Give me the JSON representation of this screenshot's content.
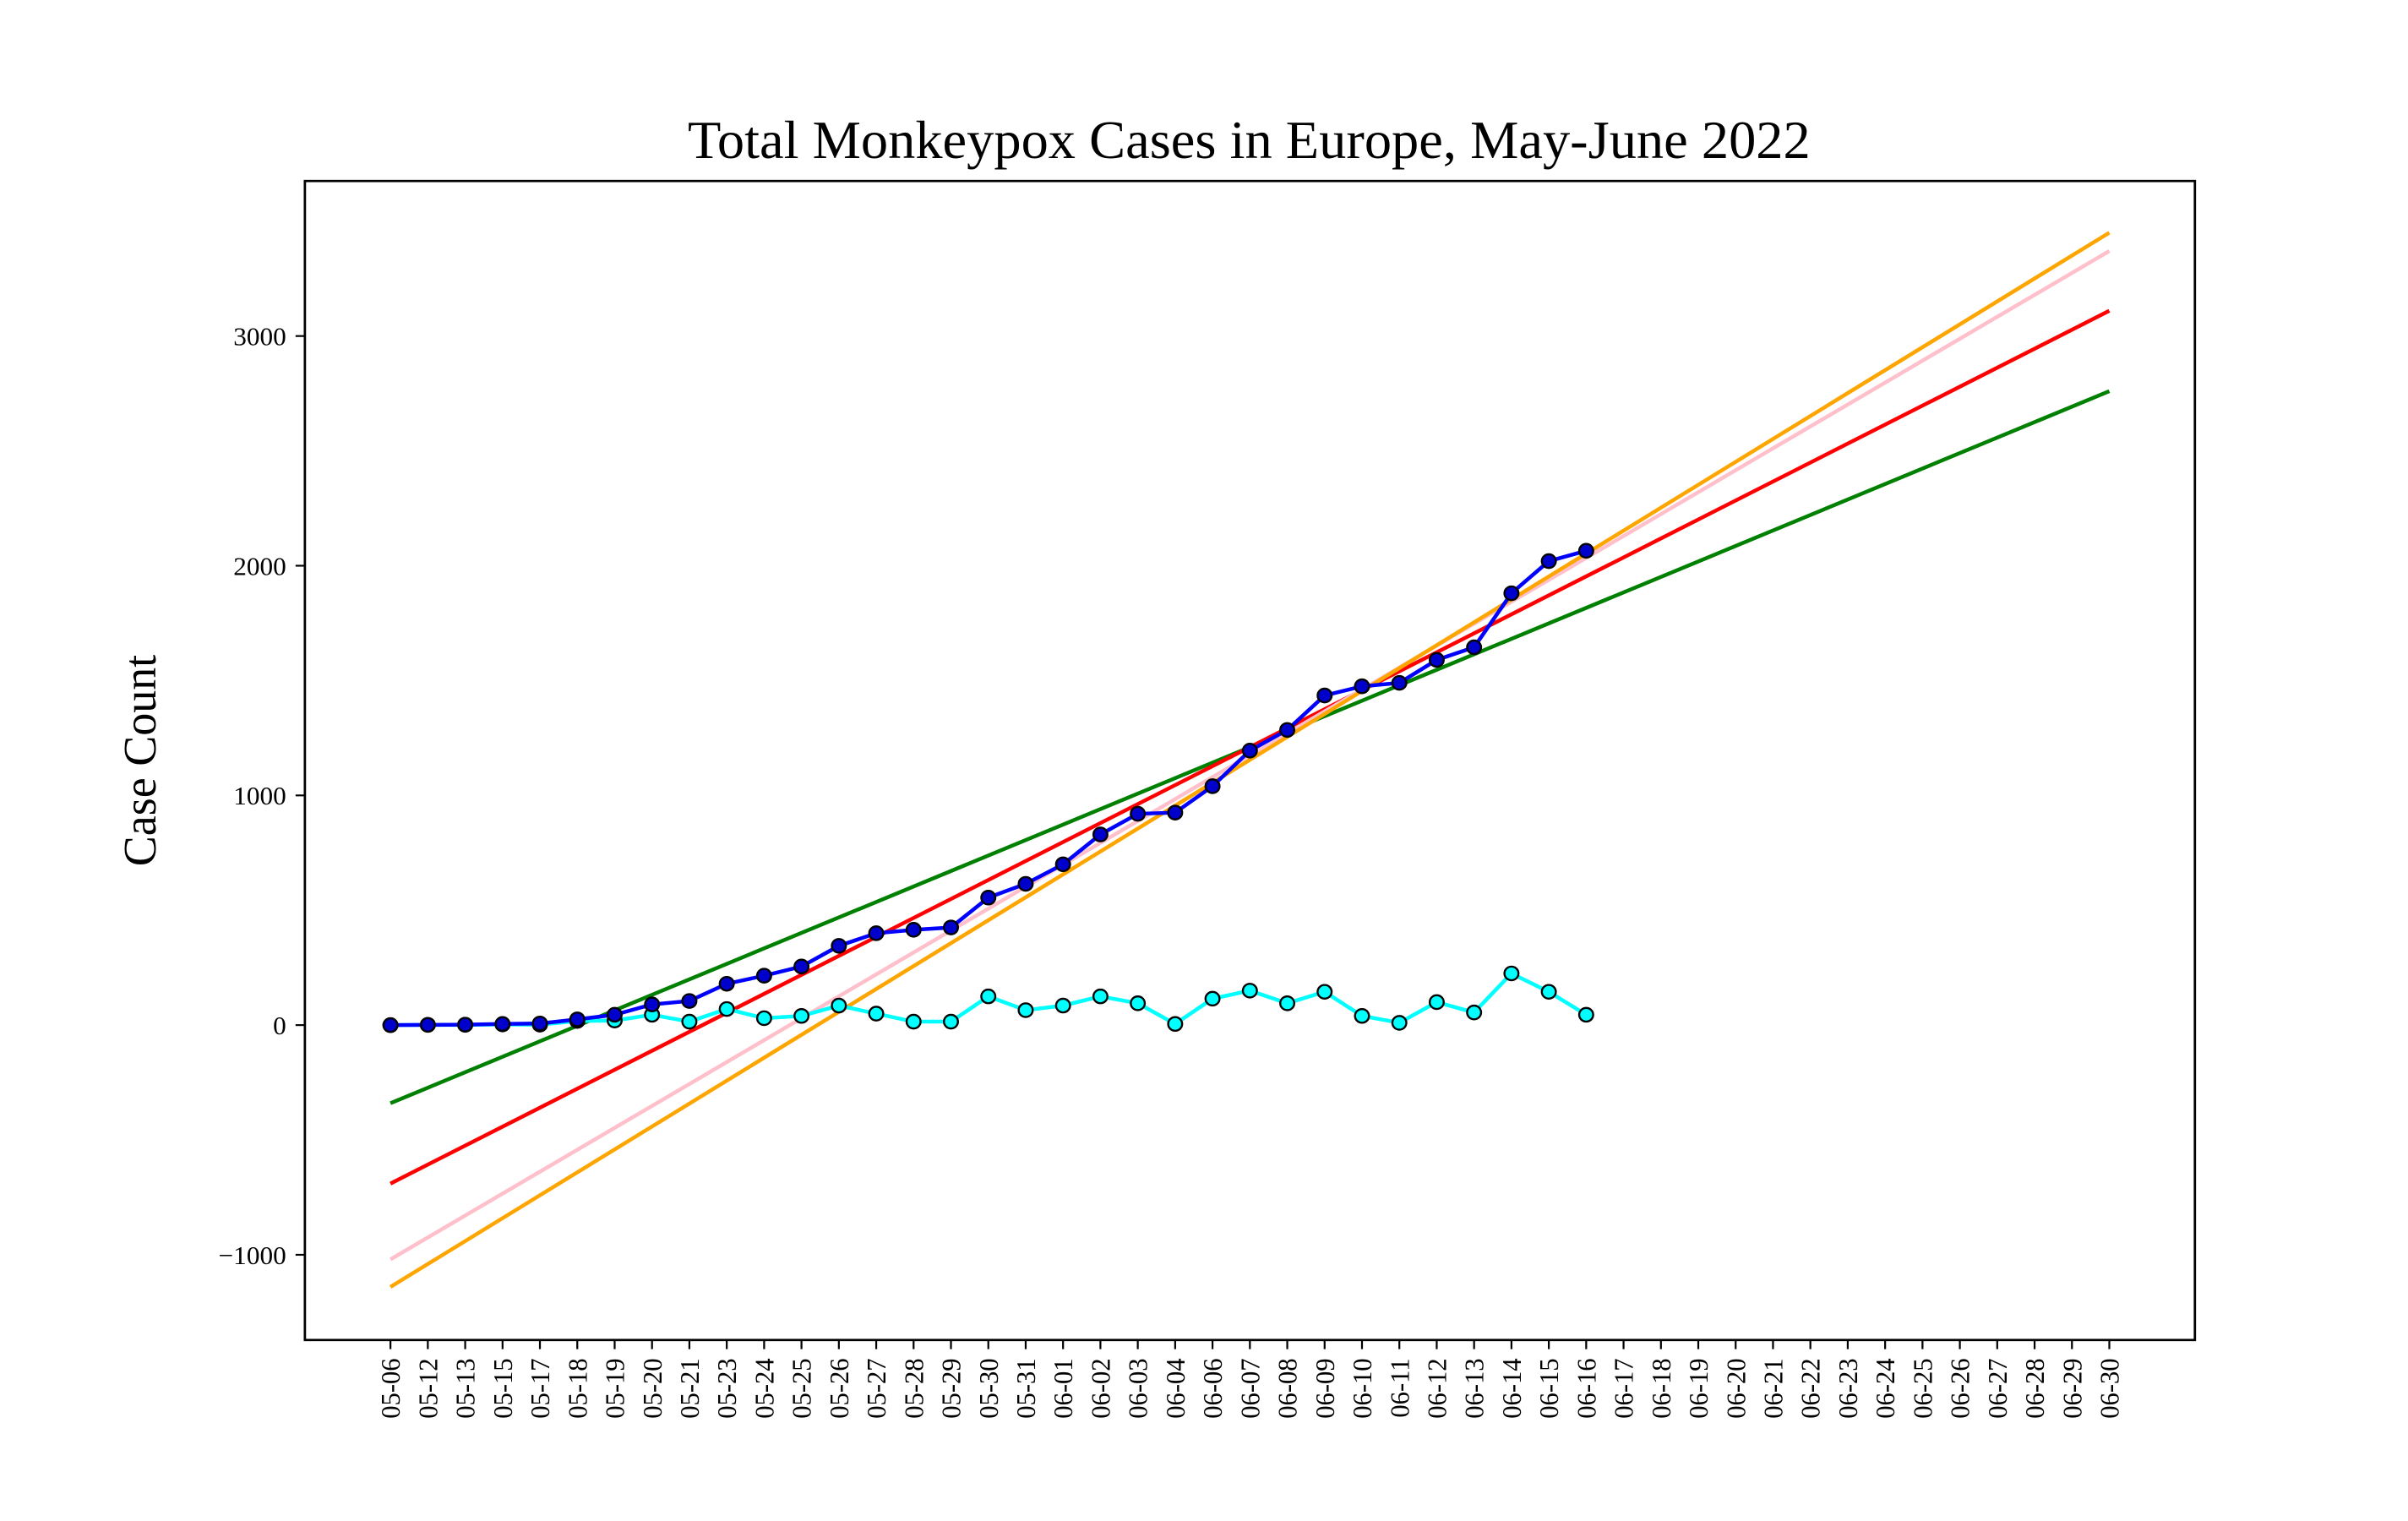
{
  "chart_data": {
    "type": "line",
    "title": "Total Monkeypox Cases in Europe, May-June 2022",
    "y_label": "Case Count",
    "categories": [
      "05-06",
      "05-12",
      "05-13",
      "05-15",
      "05-17",
      "05-18",
      "05-19",
      "05-20",
      "05-21",
      "05-23",
      "05-24",
      "05-25",
      "05-26",
      "05-27",
      "05-28",
      "05-29",
      "05-30",
      "05-31",
      "06-01",
      "06-02",
      "06-03",
      "06-04",
      "06-06",
      "06-07",
      "06-08",
      "06-09",
      "06-10",
      "06-11",
      "06-12",
      "06-13",
      "06-14",
      "06-15",
      "06-16",
      "06-17",
      "06-18",
      "06-19",
      "06-20",
      "06-21",
      "06-22",
      "06-23",
      "06-24",
      "06-25",
      "06-26",
      "06-27",
      "06-28",
      "06-29",
      "06-30"
    ],
    "series": [
      {
        "color": "#008000",
        "x": [
          "05-06",
          "06-30"
        ],
        "values": [
          -340,
          2760
        ]
      },
      {
        "color": "#ff0000",
        "x": [
          "05-06",
          "06-30"
        ],
        "values": [
          -690,
          3110
        ]
      },
      {
        "color": "#ffc0cb",
        "x": [
          "05-06",
          "06-30"
        ],
        "values": [
          -1020,
          3370
        ]
      },
      {
        "color": "#ffa500",
        "x": [
          "05-06",
          "06-30"
        ],
        "values": [
          -1140,
          3450
        ]
      },
      {
        "color": "#00ffff",
        "marker_color": "#00ffff",
        "values": [
          0,
          1,
          1,
          3,
          2,
          18,
          20,
          45,
          15,
          70,
          30,
          40,
          85,
          50,
          15,
          15,
          125,
          65,
          85,
          125,
          95,
          5,
          115,
          150,
          95,
          145,
          40,
          10,
          100,
          55,
          225,
          145,
          45,
          null,
          null,
          null,
          null,
          null,
          null,
          null,
          null,
          null,
          null,
          null,
          null,
          null,
          null
        ]
      },
      {
        "color": "#0000ff",
        "marker_color": "#0000cc",
        "values": [
          0,
          1,
          2,
          5,
          7,
          25,
          45,
          90,
          105,
          180,
          215,
          255,
          345,
          400,
          415,
          425,
          555,
          615,
          700,
          830,
          920,
          925,
          1040,
          1195,
          1285,
          1435,
          1475,
          1490,
          1590,
          1645,
          1880,
          2020,
          2065,
          null,
          null,
          null,
          null,
          null,
          null,
          null,
          null,
          null,
          null,
          null,
          null,
          null,
          null
        ]
      }
    ],
    "xlim": [
      -2.29,
      48.29
    ],
    "ylim": [
      -1371,
      3675
    ],
    "yticks": [
      {
        "value": -1000,
        "label": "−1000"
      },
      0,
      1000,
      2000,
      3000
    ],
    "grid": false
  }
}
